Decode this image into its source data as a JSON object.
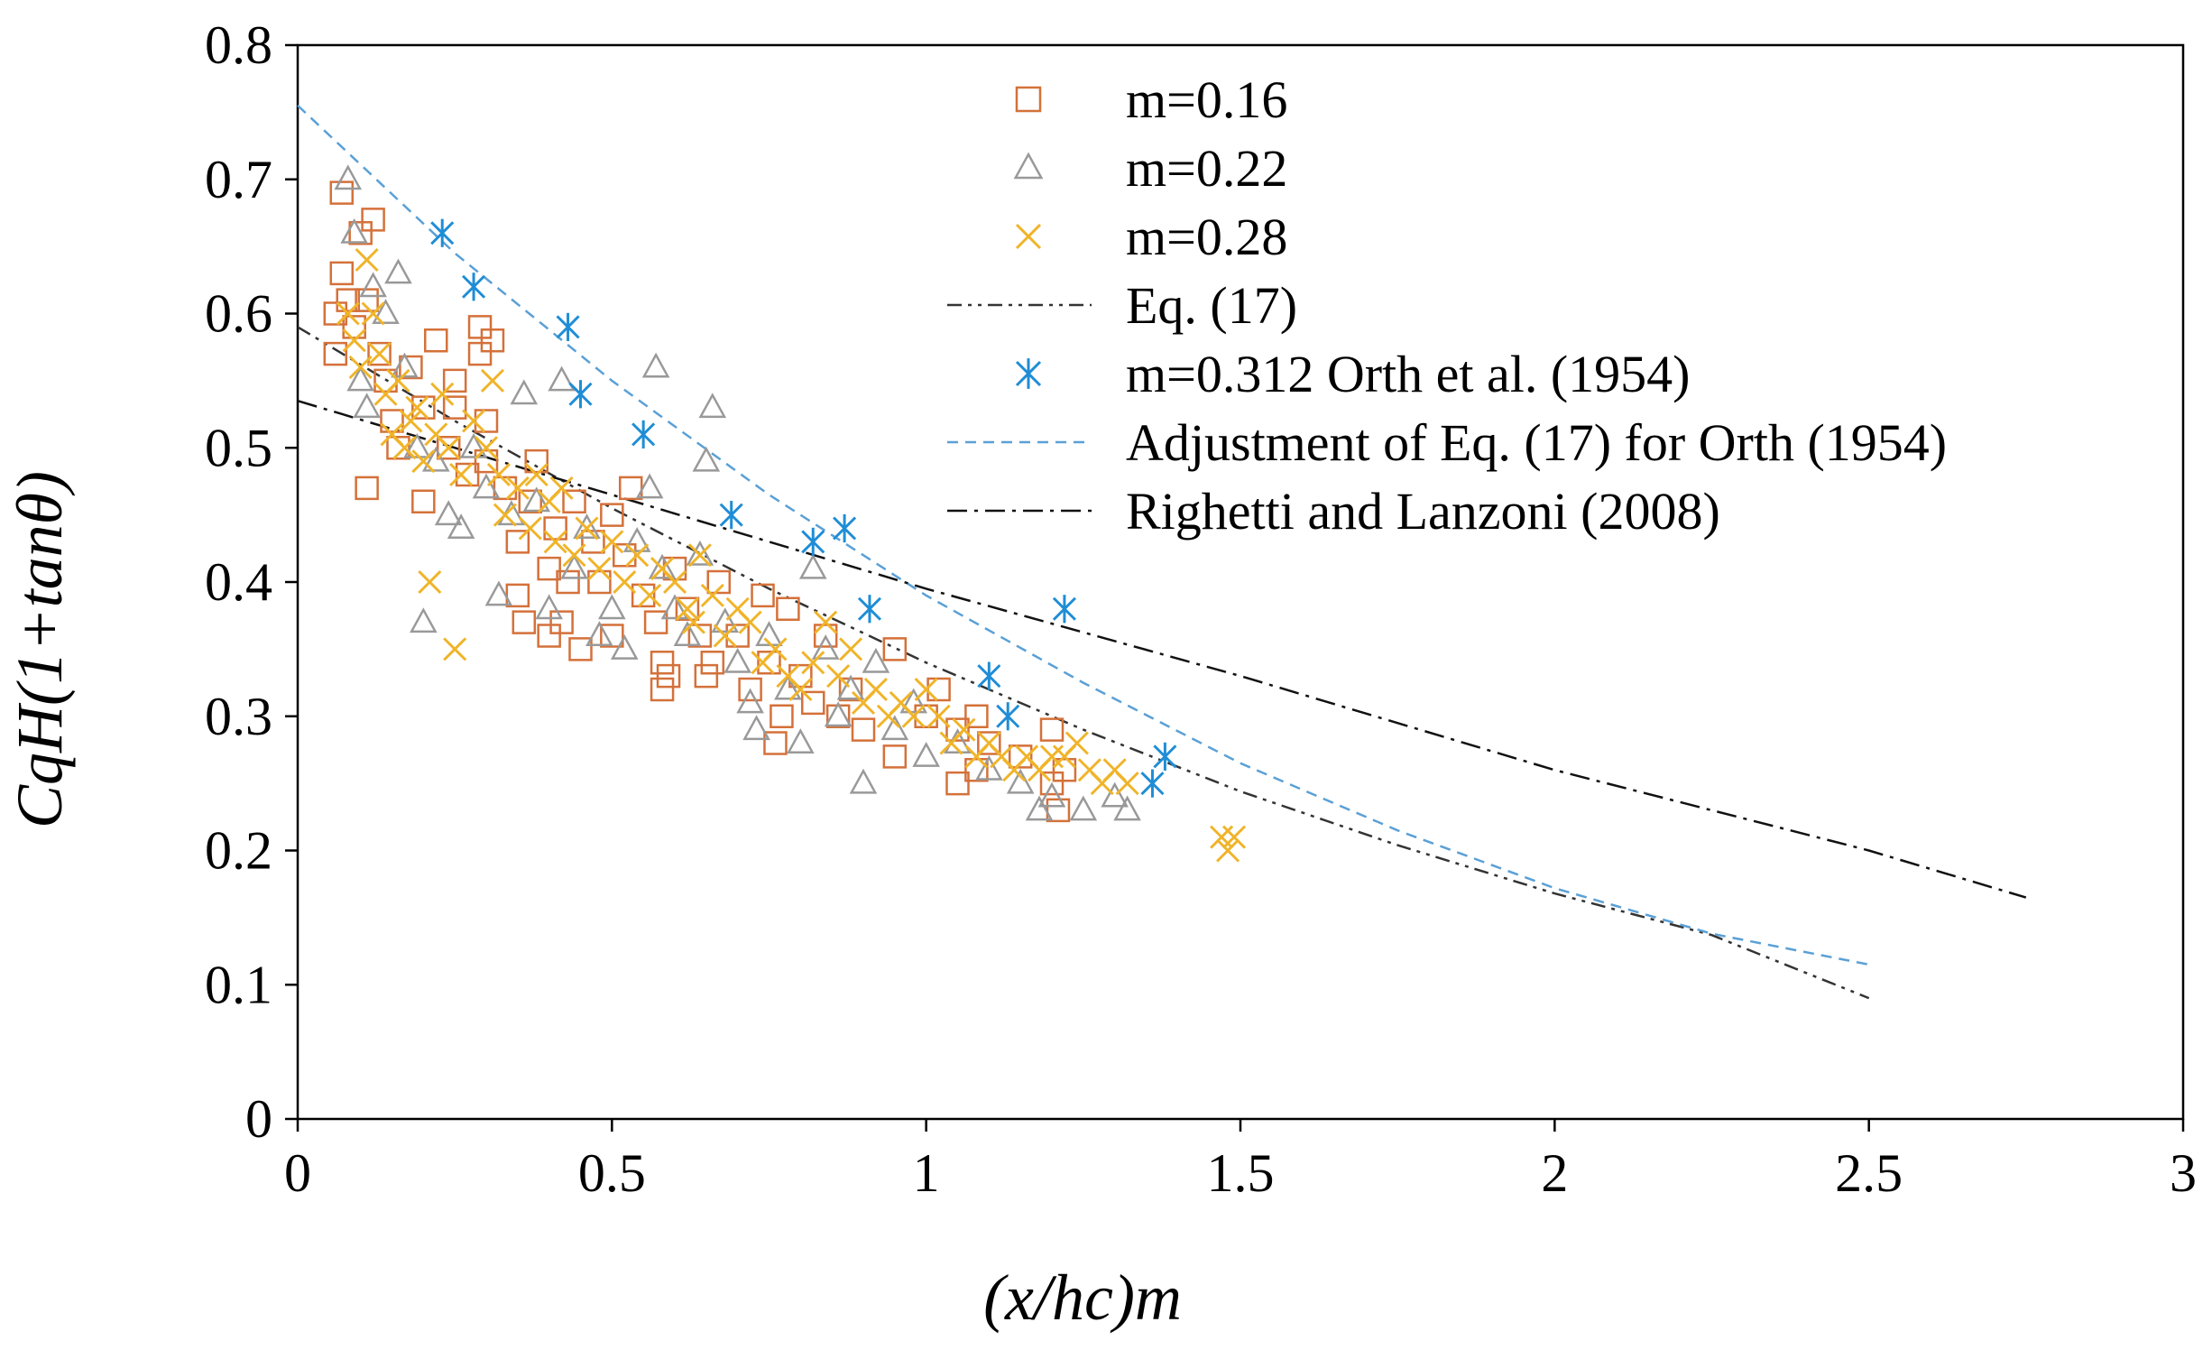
{
  "chart_data": {
    "type": "scatter",
    "title": "",
    "xlabel": "(x/hc)m",
    "ylabel": "CqH(1+tanθ)",
    "xlim": [
      0,
      3
    ],
    "ylim": [
      0,
      0.8
    ],
    "x_ticks": [
      "0",
      "0.5",
      "1",
      "1.5",
      "2",
      "2.5",
      "3"
    ],
    "y_ticks": [
      "0",
      "0.1",
      "0.2",
      "0.3",
      "0.4",
      "0.5",
      "0.6",
      "0.7",
      "0.8"
    ],
    "legend_position": "top-right",
    "series": [
      {
        "name": "m=0.16",
        "kind": "scatter",
        "marker": "square",
        "color": "#d4713a",
        "points": [
          [
            0.07,
            0.69
          ],
          [
            0.07,
            0.63
          ],
          [
            0.06,
            0.6
          ],
          [
            0.06,
            0.57
          ],
          [
            0.08,
            0.61
          ],
          [
            0.09,
            0.59
          ],
          [
            0.1,
            0.66
          ],
          [
            0.11,
            0.61
          ],
          [
            0.12,
            0.67
          ],
          [
            0.13,
            0.57
          ],
          [
            0.14,
            0.55
          ],
          [
            0.15,
            0.52
          ],
          [
            0.11,
            0.47
          ],
          [
            0.16,
            0.5
          ],
          [
            0.18,
            0.56
          ],
          [
            0.2,
            0.53
          ],
          [
            0.2,
            0.46
          ],
          [
            0.22,
            0.58
          ],
          [
            0.24,
            0.5
          ],
          [
            0.25,
            0.55
          ],
          [
            0.27,
            0.48
          ],
          [
            0.29,
            0.59
          ],
          [
            0.29,
            0.57
          ],
          [
            0.3,
            0.52
          ],
          [
            0.31,
            0.58
          ],
          [
            0.33,
            0.47
          ],
          [
            0.35,
            0.43
          ],
          [
            0.35,
            0.39
          ],
          [
            0.36,
            0.37
          ],
          [
            0.37,
            0.46
          ],
          [
            0.38,
            0.49
          ],
          [
            0.4,
            0.41
          ],
          [
            0.41,
            0.44
          ],
          [
            0.42,
            0.37
          ],
          [
            0.43,
            0.4
          ],
          [
            0.44,
            0.46
          ],
          [
            0.45,
            0.35
          ],
          [
            0.47,
            0.43
          ],
          [
            0.48,
            0.4
          ],
          [
            0.5,
            0.36
          ],
          [
            0.5,
            0.45
          ],
          [
            0.52,
            0.42
          ],
          [
            0.53,
            0.47
          ],
          [
            0.55,
            0.39
          ],
          [
            0.57,
            0.37
          ],
          [
            0.58,
            0.34
          ],
          [
            0.59,
            0.33
          ],
          [
            0.6,
            0.41
          ],
          [
            0.62,
            0.38
          ],
          [
            0.64,
            0.36
          ],
          [
            0.65,
            0.33
          ],
          [
            0.67,
            0.4
          ],
          [
            0.7,
            0.36
          ],
          [
            0.72,
            0.32
          ],
          [
            0.74,
            0.39
          ],
          [
            0.75,
            0.34
          ],
          [
            0.76,
            0.28
          ],
          [
            0.77,
            0.3
          ],
          [
            0.78,
            0.38
          ],
          [
            0.8,
            0.33
          ],
          [
            0.82,
            0.31
          ],
          [
            0.84,
            0.36
          ],
          [
            0.86,
            0.3
          ],
          [
            0.88,
            0.32
          ],
          [
            0.9,
            0.29
          ],
          [
            0.95,
            0.35
          ],
          [
            0.95,
            0.27
          ],
          [
            1.0,
            0.3
          ],
          [
            1.02,
            0.32
          ],
          [
            1.05,
            0.29
          ],
          [
            1.08,
            0.26
          ],
          [
            1.08,
            0.3
          ],
          [
            1.1,
            0.28
          ],
          [
            1.15,
            0.27
          ],
          [
            1.2,
            0.29
          ],
          [
            1.2,
            0.25
          ],
          [
            1.21,
            0.23
          ],
          [
            1.22,
            0.26
          ],
          [
            1.05,
            0.25
          ],
          [
            0.58,
            0.32
          ],
          [
            0.66,
            0.34
          ],
          [
            0.4,
            0.36
          ],
          [
            0.25,
            0.53
          ],
          [
            0.3,
            0.49
          ]
        ]
      },
      {
        "name": "m=0.22",
        "kind": "scatter",
        "marker": "triangle",
        "color": "#999999",
        "points": [
          [
            0.08,
            0.7
          ],
          [
            0.09,
            0.66
          ],
          [
            0.1,
            0.55
          ],
          [
            0.11,
            0.53
          ],
          [
            0.12,
            0.62
          ],
          [
            0.14,
            0.6
          ],
          [
            0.16,
            0.63
          ],
          [
            0.17,
            0.56
          ],
          [
            0.19,
            0.5
          ],
          [
            0.2,
            0.37
          ],
          [
            0.22,
            0.49
          ],
          [
            0.24,
            0.45
          ],
          [
            0.26,
            0.44
          ],
          [
            0.28,
            0.5
          ],
          [
            0.3,
            0.47
          ],
          [
            0.32,
            0.39
          ],
          [
            0.34,
            0.45
          ],
          [
            0.36,
            0.54
          ],
          [
            0.38,
            0.46
          ],
          [
            0.4,
            0.38
          ],
          [
            0.42,
            0.55
          ],
          [
            0.44,
            0.41
          ],
          [
            0.46,
            0.44
          ],
          [
            0.48,
            0.36
          ],
          [
            0.5,
            0.38
          ],
          [
            0.52,
            0.35
          ],
          [
            0.54,
            0.43
          ],
          [
            0.56,
            0.47
          ],
          [
            0.57,
            0.56
          ],
          [
            0.58,
            0.41
          ],
          [
            0.6,
            0.38
          ],
          [
            0.62,
            0.36
          ],
          [
            0.64,
            0.42
          ],
          [
            0.65,
            0.49
          ],
          [
            0.66,
            0.53
          ],
          [
            0.68,
            0.37
          ],
          [
            0.7,
            0.34
          ],
          [
            0.72,
            0.31
          ],
          [
            0.73,
            0.29
          ],
          [
            0.75,
            0.36
          ],
          [
            0.78,
            0.32
          ],
          [
            0.8,
            0.28
          ],
          [
            0.82,
            0.41
          ],
          [
            0.84,
            0.35
          ],
          [
            0.86,
            0.3
          ],
          [
            0.88,
            0.32
          ],
          [
            0.9,
            0.25
          ],
          [
            0.92,
            0.34
          ],
          [
            0.95,
            0.29
          ],
          [
            0.98,
            0.31
          ],
          [
            1.0,
            0.27
          ],
          [
            1.05,
            0.28
          ],
          [
            1.1,
            0.26
          ],
          [
            1.15,
            0.25
          ],
          [
            1.2,
            0.24
          ],
          [
            1.25,
            0.23
          ],
          [
            1.3,
            0.24
          ],
          [
            1.32,
            0.23
          ],
          [
            1.18,
            0.23
          ]
        ]
      },
      {
        "name": "m=0.28",
        "kind": "scatter",
        "marker": "x",
        "color": "#f0b429",
        "points": [
          [
            0.08,
            0.6
          ],
          [
            0.09,
            0.58
          ],
          [
            0.1,
            0.56
          ],
          [
            0.11,
            0.64
          ],
          [
            0.12,
            0.6
          ],
          [
            0.13,
            0.57
          ],
          [
            0.14,
            0.54
          ],
          [
            0.15,
            0.51
          ],
          [
            0.16,
            0.55
          ],
          [
            0.17,
            0.5
          ],
          [
            0.18,
            0.52
          ],
          [
            0.19,
            0.53
          ],
          [
            0.2,
            0.49
          ],
          [
            0.21,
            0.4
          ],
          [
            0.22,
            0.51
          ],
          [
            0.23,
            0.54
          ],
          [
            0.24,
            0.5
          ],
          [
            0.25,
            0.35
          ],
          [
            0.26,
            0.48
          ],
          [
            0.28,
            0.52
          ],
          [
            0.3,
            0.5
          ],
          [
            0.31,
            0.55
          ],
          [
            0.32,
            0.48
          ],
          [
            0.33,
            0.45
          ],
          [
            0.35,
            0.47
          ],
          [
            0.37,
            0.44
          ],
          [
            0.38,
            0.48
          ],
          [
            0.4,
            0.46
          ],
          [
            0.41,
            0.43
          ],
          [
            0.42,
            0.47
          ],
          [
            0.44,
            0.42
          ],
          [
            0.46,
            0.44
          ],
          [
            0.48,
            0.41
          ],
          [
            0.5,
            0.43
          ],
          [
            0.52,
            0.4
          ],
          [
            0.54,
            0.42
          ],
          [
            0.56,
            0.39
          ],
          [
            0.58,
            0.41
          ],
          [
            0.6,
            0.4
          ],
          [
            0.62,
            0.38
          ],
          [
            0.63,
            0.37
          ],
          [
            0.64,
            0.42
          ],
          [
            0.66,
            0.39
          ],
          [
            0.68,
            0.36
          ],
          [
            0.7,
            0.38
          ],
          [
            0.72,
            0.37
          ],
          [
            0.74,
            0.34
          ],
          [
            0.76,
            0.35
          ],
          [
            0.78,
            0.33
          ],
          [
            0.8,
            0.32
          ],
          [
            0.82,
            0.34
          ],
          [
            0.84,
            0.37
          ],
          [
            0.86,
            0.33
          ],
          [
            0.88,
            0.35
          ],
          [
            0.9,
            0.31
          ],
          [
            0.92,
            0.32
          ],
          [
            0.94,
            0.3
          ],
          [
            0.96,
            0.31
          ],
          [
            0.98,
            0.3
          ],
          [
            1.0,
            0.32
          ],
          [
            1.02,
            0.3
          ],
          [
            1.04,
            0.28
          ],
          [
            1.06,
            0.29
          ],
          [
            1.08,
            0.27
          ],
          [
            1.1,
            0.28
          ],
          [
            1.12,
            0.27
          ],
          [
            1.14,
            0.26
          ],
          [
            1.16,
            0.27
          ],
          [
            1.18,
            0.26
          ],
          [
            1.2,
            0.27
          ],
          [
            1.22,
            0.27
          ],
          [
            1.24,
            0.28
          ],
          [
            1.26,
            0.26
          ],
          [
            1.28,
            0.25
          ],
          [
            1.3,
            0.26
          ],
          [
            1.32,
            0.25
          ],
          [
            1.47,
            0.21
          ],
          [
            1.48,
            0.2
          ],
          [
            1.49,
            0.21
          ]
        ]
      },
      {
        "name": "Eq. (17)",
        "kind": "line",
        "style": "dash-dot-dot",
        "color": "#333333",
        "points": [
          [
            0.0,
            0.59
          ],
          [
            0.25,
            0.52
          ],
          [
            0.5,
            0.455
          ],
          [
            0.75,
            0.395
          ],
          [
            1.0,
            0.34
          ],
          [
            1.25,
            0.29
          ],
          [
            1.5,
            0.244
          ],
          [
            1.75,
            0.204
          ],
          [
            2.0,
            0.168
          ],
          [
            2.25,
            0.137
          ],
          [
            2.5,
            0.09
          ]
        ]
      },
      {
        "name": "m=0.312 Orth et al. (1954)",
        "kind": "scatter",
        "marker": "asterisk",
        "color": "#1f8dd6",
        "points": [
          [
            0.23,
            0.66
          ],
          [
            0.28,
            0.62
          ],
          [
            0.43,
            0.59
          ],
          [
            0.45,
            0.54
          ],
          [
            0.55,
            0.51
          ],
          [
            0.69,
            0.45
          ],
          [
            0.82,
            0.43
          ],
          [
            0.87,
            0.44
          ],
          [
            0.91,
            0.38
          ],
          [
            1.1,
            0.33
          ],
          [
            1.13,
            0.3
          ],
          [
            1.22,
            0.38
          ],
          [
            1.36,
            0.25
          ],
          [
            1.38,
            0.27
          ]
        ]
      },
      {
        "name": "Adjustment of Eq. (17) for Orth (1954)",
        "kind": "line",
        "style": "dashed",
        "color": "#5aa0d6",
        "points": [
          [
            0.0,
            0.755
          ],
          [
            0.25,
            0.645
          ],
          [
            0.5,
            0.55
          ],
          [
            0.75,
            0.465
          ],
          [
            1.0,
            0.39
          ],
          [
            1.25,
            0.325
          ],
          [
            1.5,
            0.265
          ],
          [
            1.75,
            0.215
          ],
          [
            2.0,
            0.172
          ],
          [
            2.25,
            0.138
          ],
          [
            2.5,
            0.115
          ]
        ]
      },
      {
        "name": "Righetti and Lanzoni (2008)",
        "kind": "line",
        "style": "dash-dot",
        "color": "#111111",
        "points": [
          [
            0.0,
            0.535
          ],
          [
            0.5,
            0.465
          ],
          [
            1.0,
            0.395
          ],
          [
            1.5,
            0.33
          ],
          [
            2.0,
            0.26
          ],
          [
            2.5,
            0.2
          ],
          [
            2.75,
            0.165
          ]
        ]
      }
    ]
  }
}
